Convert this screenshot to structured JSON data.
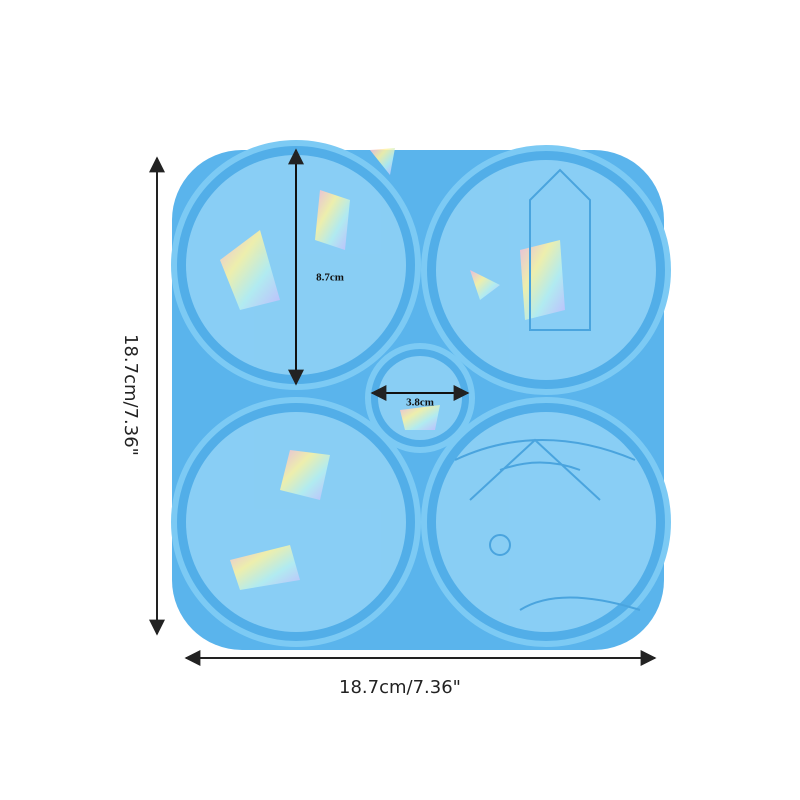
{
  "dimensions": {
    "height": "18.7cm/7.36\"",
    "width": "18.7cm/7.36\"",
    "coaster_diameter": "8.7cm",
    "pumpkin_diameter": "3.8cm"
  }
}
